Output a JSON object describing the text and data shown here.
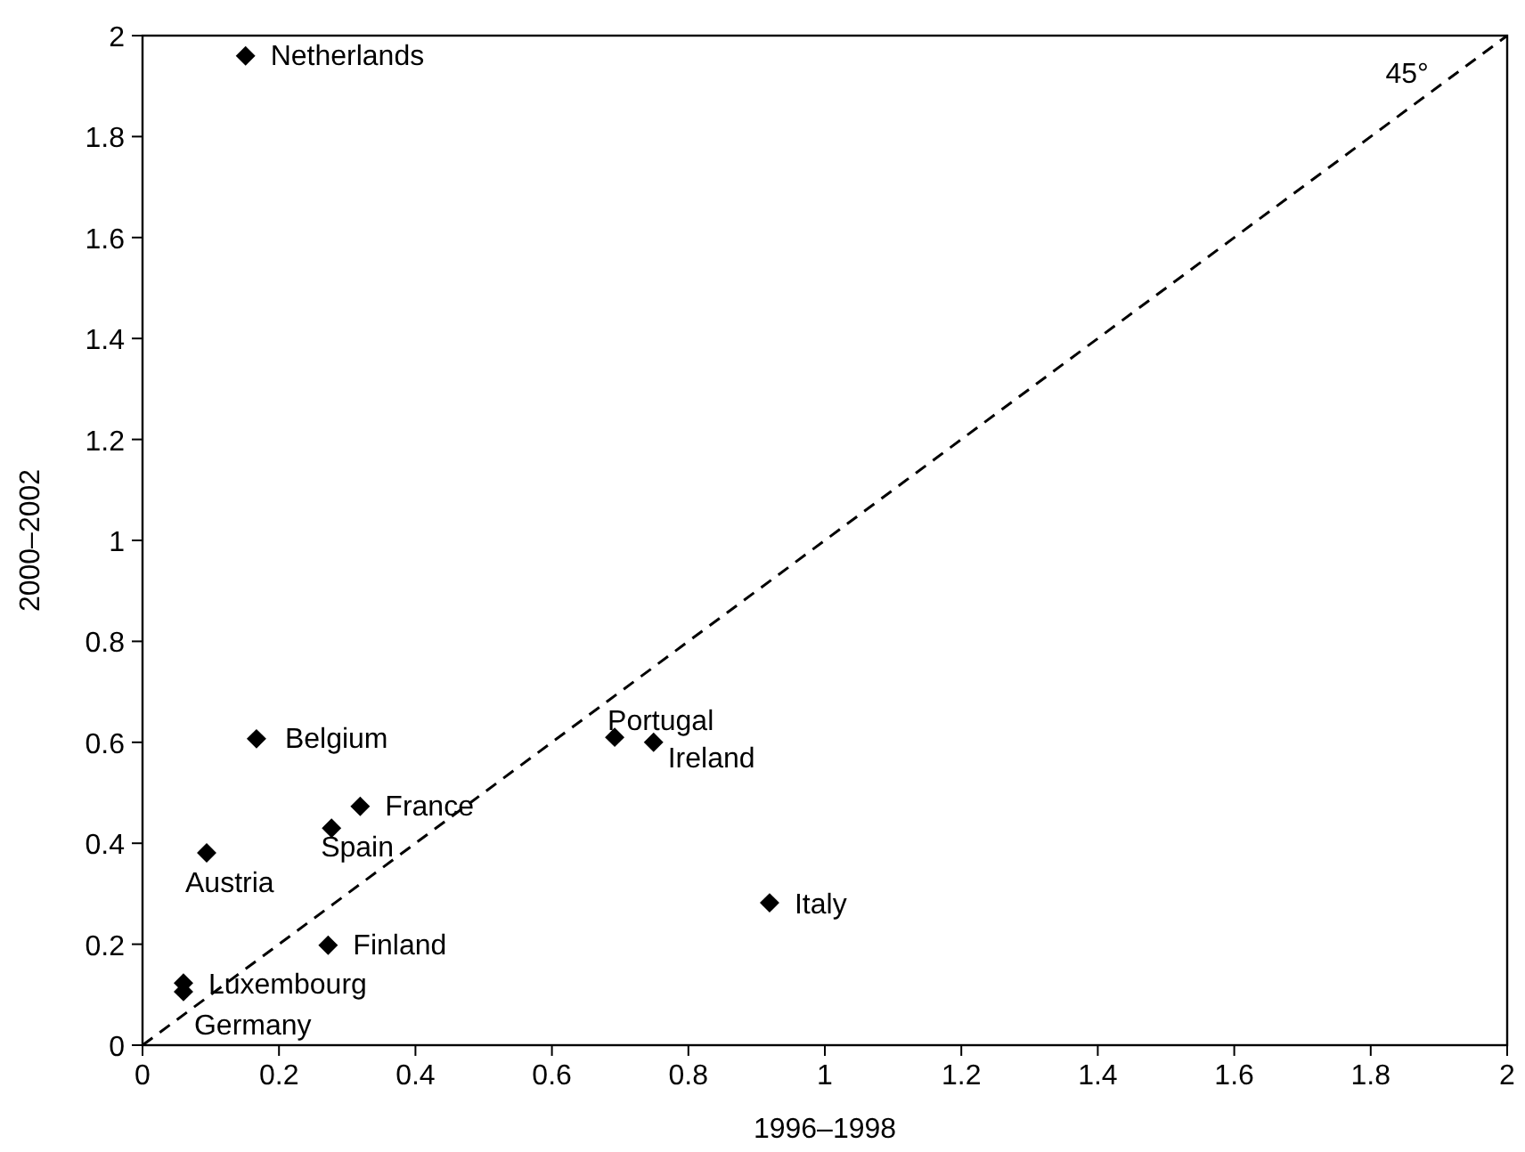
{
  "chart_data": {
    "type": "scatter",
    "xlabel": "1996–1998",
    "ylabel": "2000–2002",
    "xlim": [
      0,
      2
    ],
    "ylim": [
      0,
      2
    ],
    "xticks": [
      0,
      0.2,
      0.4,
      0.6,
      0.8,
      1,
      1.2,
      1.4,
      1.6,
      1.8,
      2
    ],
    "yticks": [
      0,
      0.2,
      0.4,
      0.6,
      0.8,
      1,
      1.2,
      1.4,
      1.6,
      1.8,
      2
    ],
    "grid": false,
    "marker": "diamond",
    "series": [
      {
        "color": "#000000",
        "x": [
          0.151,
          0.167,
          0.319,
          0.277,
          0.094,
          0.272,
          0.06,
          0.06,
          0.692,
          0.749,
          0.919
        ],
        "values": [
          1.96,
          0.607,
          0.473,
          0.43,
          0.381,
          0.198,
          0.123,
          0.106,
          0.61,
          0.6,
          0.282
        ]
      },
      {
        "type": "line",
        "color": "#000000",
        "line_style": "dashed",
        "marker": "none",
        "x": [
          0,
          2
        ],
        "values": [
          0,
          2
        ]
      }
    ],
    "annotations": [
      {
        "text": "Netherlands",
        "x": 0.151,
        "y": 1.96
      },
      {
        "text": "Belgium",
        "x": 0.167,
        "y": 0.607
      },
      {
        "text": "France",
        "x": 0.319,
        "y": 0.473
      },
      {
        "text": "Spain",
        "x": 0.277,
        "y": 0.43
      },
      {
        "text": "Austria",
        "x": 0.094,
        "y": 0.381
      },
      {
        "text": "Finland",
        "x": 0.272,
        "y": 0.198
      },
      {
        "text": "Luxembourg",
        "x": 0.06,
        "y": 0.123
      },
      {
        "text": "Germany",
        "x": 0.06,
        "y": 0.106
      },
      {
        "text": "Portugal",
        "x": 0.692,
        "y": 0.61
      },
      {
        "text": "Ireland",
        "x": 0.749,
        "y": 0.6
      },
      {
        "text": "Italy",
        "x": 0.919,
        "y": 0.282
      },
      {
        "text": "45°",
        "x": 1.9,
        "y": 1.9
      }
    ]
  }
}
